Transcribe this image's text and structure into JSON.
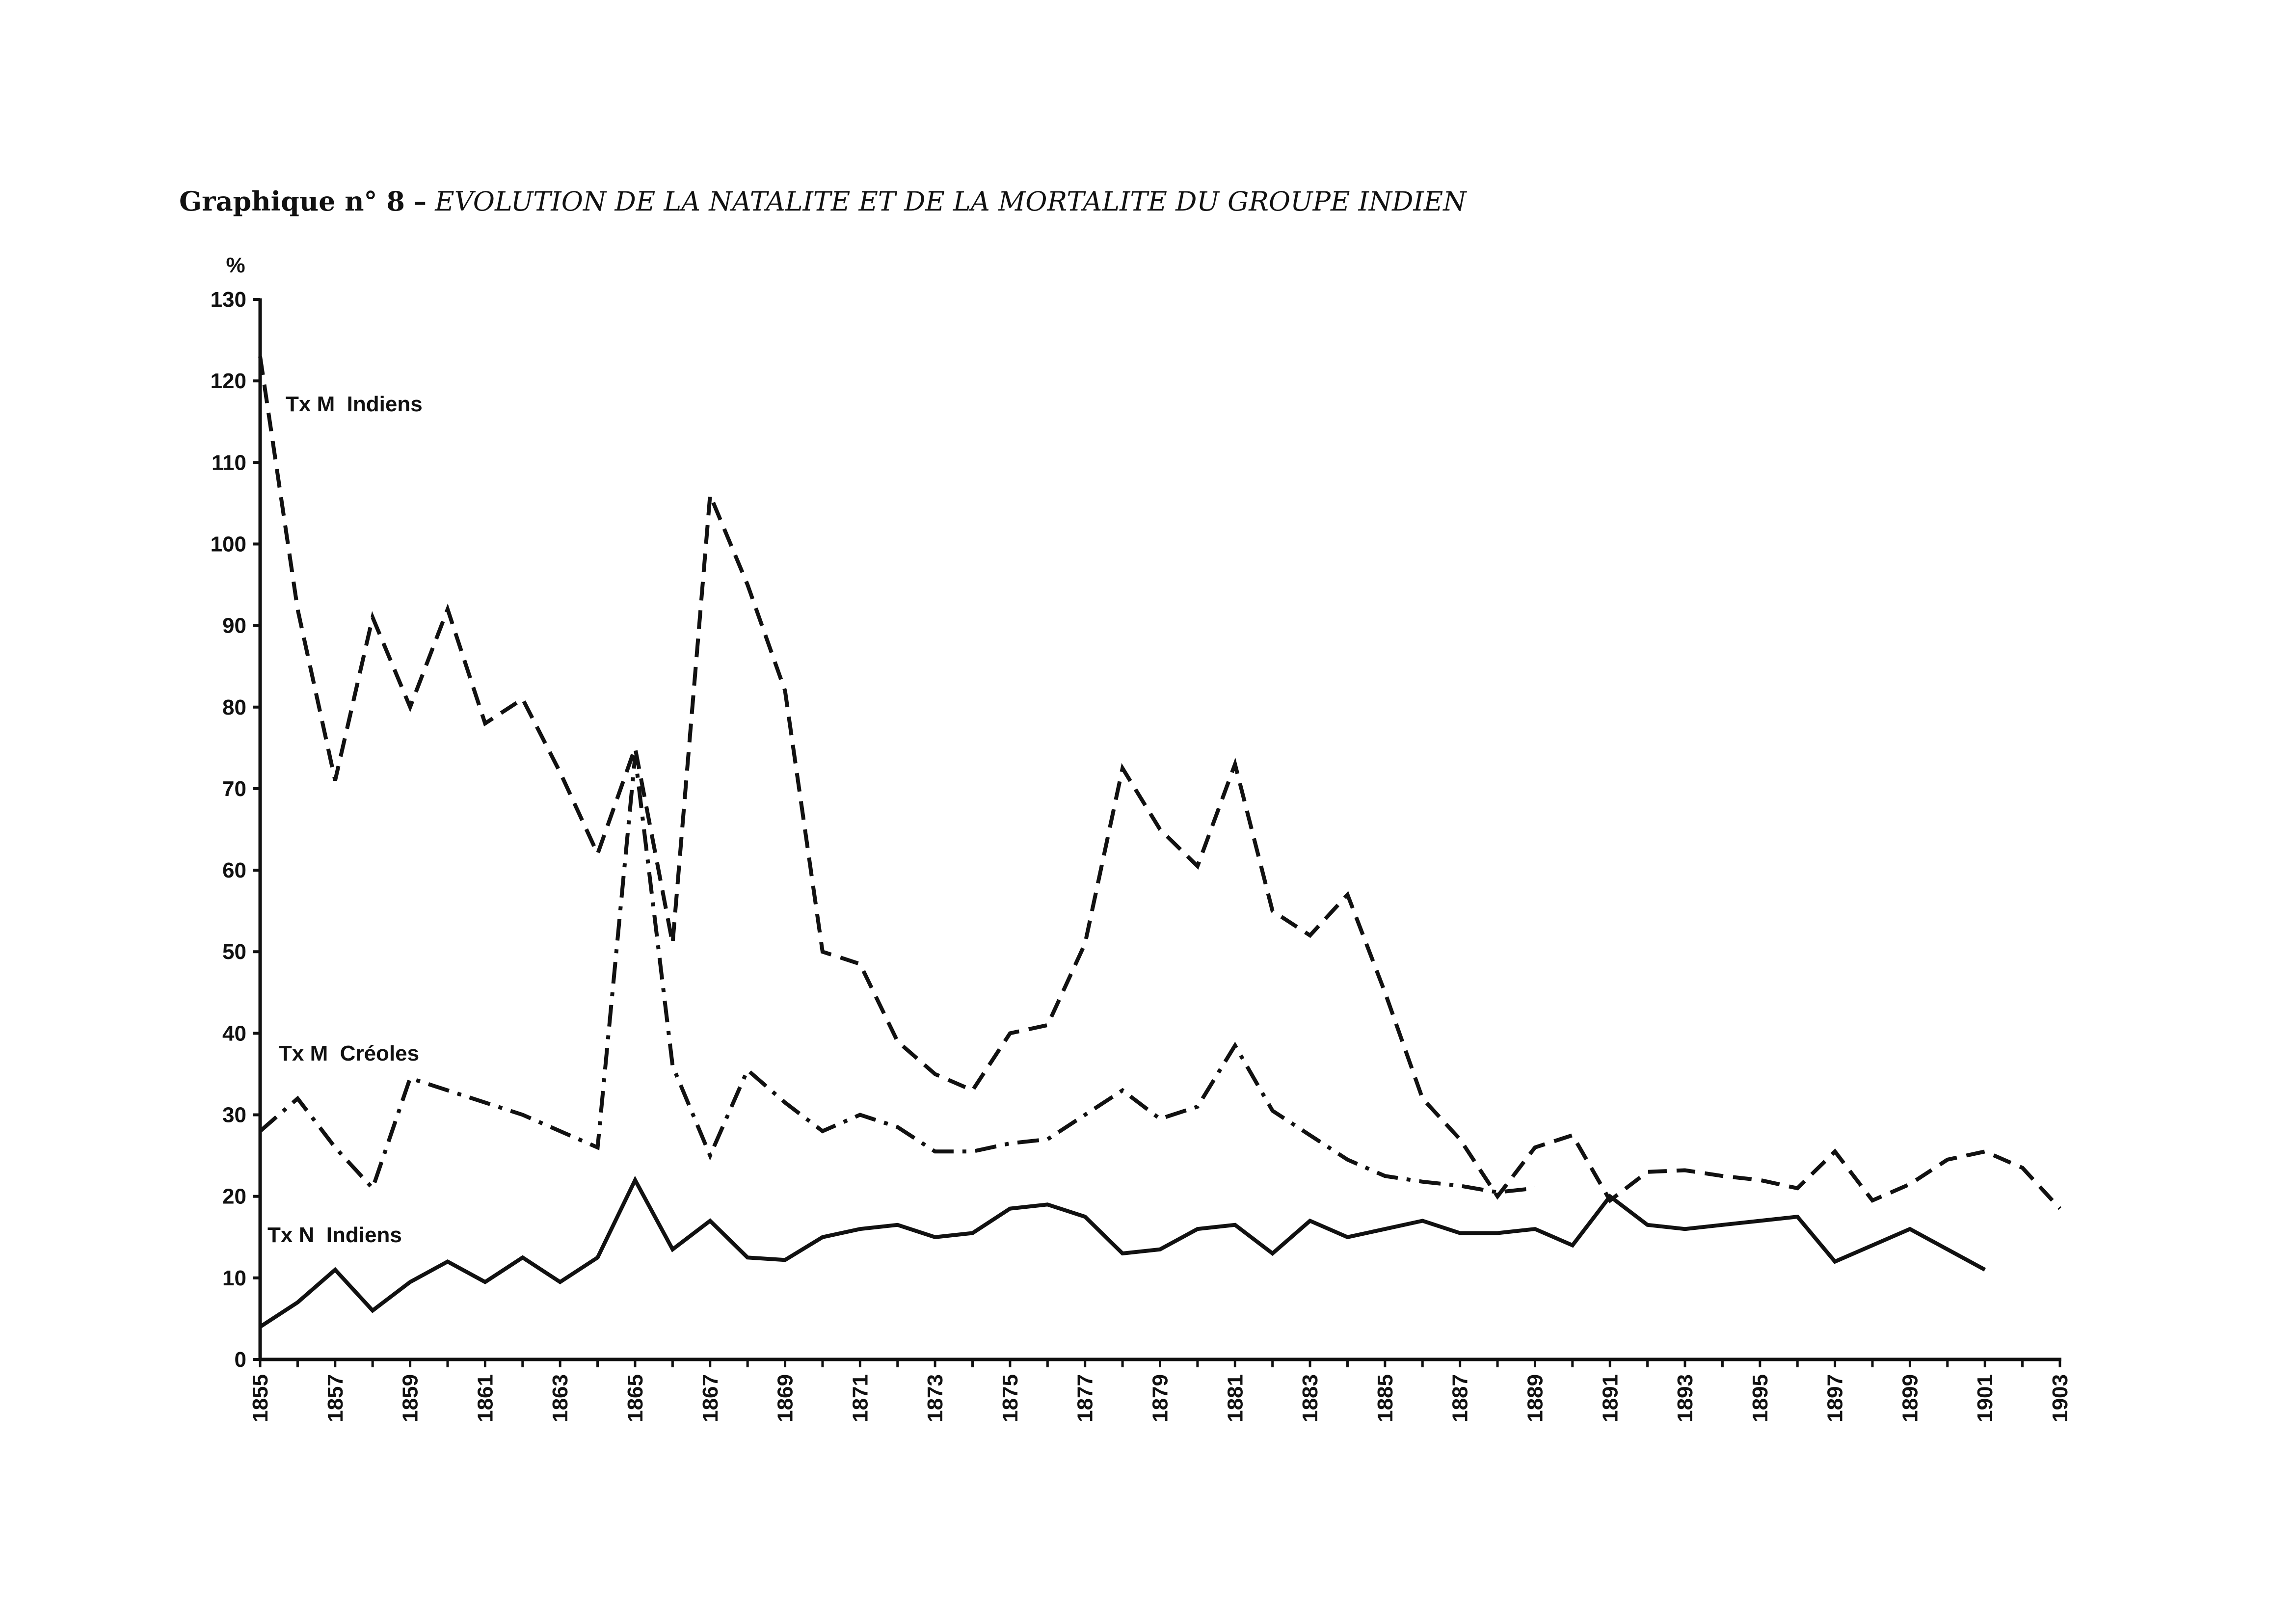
{
  "title": {
    "lead": "Graphique n° 8",
    "separator": "–",
    "main": "EVOLUTION DE LA NATALITE ET DE LA MORTALITE DU GROUPE INDIEN"
  },
  "chart_data": {
    "type": "line",
    "title": "Graphique n° 8 – EVOLUTION DE LA NATALITE ET DE LA MORTALITE DU GROUPE INDIEN",
    "ylabel": "%",
    "xlabel": "",
    "ylim": [
      0,
      130
    ],
    "yticks": [
      0,
      10,
      20,
      30,
      40,
      50,
      60,
      70,
      80,
      90,
      100,
      110,
      120,
      130
    ],
    "xlim": [
      1855,
      1903
    ],
    "xtick_labels": [
      "1855",
      "1857",
      "1859",
      "1861",
      "1863",
      "1865",
      "1867",
      "1869",
      "1871",
      "1873",
      "1875",
      "1877",
      "1879",
      "1881",
      "1883",
      "1885",
      "1887",
      "1889",
      "1891",
      "1893",
      "1895",
      "1897",
      "1899",
      "1901",
      "1903"
    ],
    "grid": false,
    "legend": "none",
    "series": [
      {
        "name": "Tx M Indiens",
        "style": "dashed",
        "color": "#111111",
        "points": [
          [
            1855,
            123
          ],
          [
            1856,
            92
          ],
          [
            1857,
            71
          ],
          [
            1858,
            91
          ],
          [
            1859,
            80
          ],
          [
            1860,
            92
          ],
          [
            1861,
            78
          ],
          [
            1862,
            81
          ],
          [
            1863,
            72
          ],
          [
            1864,
            62
          ],
          [
            1865,
            75
          ],
          [
            1866,
            51
          ],
          [
            1867,
            106
          ],
          [
            1868,
            95
          ],
          [
            1869,
            82
          ],
          [
            1870,
            50
          ],
          [
            1871,
            48.5
          ],
          [
            1872,
            39
          ],
          [
            1873,
            35
          ],
          [
            1874,
            33
          ],
          [
            1875,
            40
          ],
          [
            1876,
            41
          ],
          [
            1877,
            51
          ],
          [
            1878,
            72.5
          ],
          [
            1879,
            65
          ],
          [
            1880,
            60.5
          ],
          [
            1881,
            73
          ],
          [
            1882,
            55
          ],
          [
            1883,
            52
          ],
          [
            1884,
            57
          ],
          [
            1885,
            45
          ],
          [
            1886,
            32
          ],
          [
            1887,
            27
          ],
          [
            1888,
            20
          ],
          [
            1889,
            26
          ],
          [
            1890,
            27.5
          ],
          [
            1891,
            19.5
          ],
          [
            1892,
            23
          ],
          [
            1893,
            23.2
          ],
          [
            1894,
            22.5
          ],
          [
            1895,
            22
          ],
          [
            1896,
            21
          ],
          [
            1897,
            25.5
          ],
          [
            1898,
            19.5
          ],
          [
            1899,
            21.5
          ],
          [
            1900,
            24.5
          ],
          [
            1901,
            25.5
          ],
          [
            1902,
            23.5
          ],
          [
            1903,
            18.5
          ]
        ]
      },
      {
        "name": "Tx M Créoles",
        "style": "dash-dot",
        "color": "#111111",
        "points": [
          [
            1855,
            28
          ],
          [
            1856,
            32
          ],
          [
            1857,
            26
          ],
          [
            1858,
            21
          ],
          [
            1859,
            34.5
          ],
          [
            1860,
            33
          ],
          [
            1861,
            31.5
          ],
          [
            1862,
            30
          ],
          [
            1863,
            28
          ],
          [
            1864,
            26
          ],
          [
            1865,
            74
          ],
          [
            1866,
            36
          ],
          [
            1867,
            25
          ],
          [
            1868,
            35.5
          ],
          [
            1869,
            31.5
          ],
          [
            1870,
            28
          ],
          [
            1871,
            30
          ],
          [
            1872,
            28.5
          ],
          [
            1873,
            25.5
          ],
          [
            1874,
            25.5
          ],
          [
            1875,
            26.5
          ],
          [
            1876,
            27
          ],
          [
            1877,
            30
          ],
          [
            1878,
            33
          ],
          [
            1879,
            29.5
          ],
          [
            1880,
            31
          ],
          [
            1881,
            38.5
          ],
          [
            1882,
            30.5
          ],
          [
            1883,
            27.5
          ],
          [
            1884,
            24.5
          ],
          [
            1885,
            22.5
          ],
          [
            1886,
            21.8
          ],
          [
            1887,
            21.3
          ],
          [
            1888,
            20.5
          ],
          [
            1889,
            21
          ]
        ]
      },
      {
        "name": "Tx N Indiens",
        "style": "solid",
        "color": "#111111",
        "points": [
          [
            1855,
            4
          ],
          [
            1856,
            7
          ],
          [
            1857,
            11
          ],
          [
            1858,
            6
          ],
          [
            1859,
            9.5
          ],
          [
            1860,
            12
          ],
          [
            1861,
            9.5
          ],
          [
            1862,
            12.5
          ],
          [
            1863,
            9.5
          ],
          [
            1864,
            12.5
          ],
          [
            1865,
            22
          ],
          [
            1866,
            13.5
          ],
          [
            1867,
            17
          ],
          [
            1868,
            12.5
          ],
          [
            1869,
            12.2
          ],
          [
            1870,
            15
          ],
          [
            1871,
            16
          ],
          [
            1872,
            16.5
          ],
          [
            1873,
            15
          ],
          [
            1874,
            15.5
          ],
          [
            1875,
            18.5
          ],
          [
            1876,
            19
          ],
          [
            1877,
            17.5
          ],
          [
            1878,
            13
          ],
          [
            1879,
            13.5
          ],
          [
            1880,
            16
          ],
          [
            1881,
            16.5
          ],
          [
            1882,
            13
          ],
          [
            1883,
            17
          ],
          [
            1884,
            15
          ],
          [
            1885,
            16
          ],
          [
            1886,
            17
          ],
          [
            1887,
            15.5
          ],
          [
            1888,
            15.5
          ],
          [
            1889,
            16
          ],
          [
            1890,
            14
          ],
          [
            1891,
            20
          ],
          [
            1892,
            16.5
          ],
          [
            1893,
            16
          ],
          [
            1894,
            16.5
          ],
          [
            1895,
            17
          ],
          [
            1896,
            17.5
          ],
          [
            1897,
            12
          ],
          [
            1898,
            14
          ],
          [
            1899,
            16
          ],
          [
            1900,
            13.5
          ],
          [
            1901,
            11
          ]
        ]
      }
    ],
    "annotations": [
      {
        "text": "Tx M  Indiens",
        "series": "Tx M Indiens"
      },
      {
        "text": "Tx M  Créoles",
        "series": "Tx M Créoles"
      },
      {
        "text": "Tx N  Indiens",
        "series": "Tx N Indiens"
      }
    ]
  }
}
